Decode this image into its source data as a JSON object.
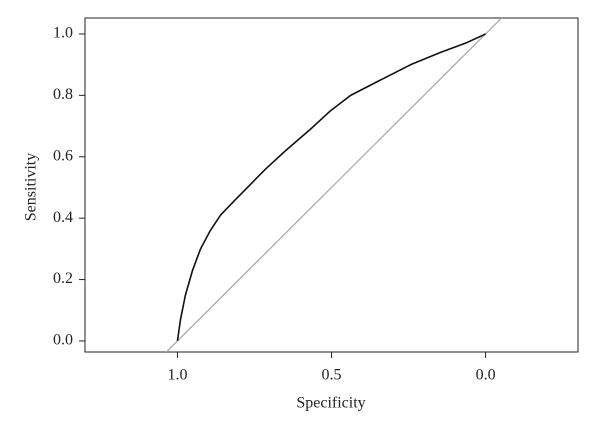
{
  "chart_data": {
    "type": "line",
    "x_label": "Specificity",
    "y_label": "Sensitivity",
    "x": [
      1.0,
      0.99,
      0.974,
      0.951,
      0.925,
      0.893,
      0.86,
      0.812,
      0.763,
      0.714,
      0.649,
      0.568,
      0.503,
      0.438,
      0.341,
      0.243,
      0.146,
      0.065,
      0.0
    ],
    "series": [
      {
        "color": "#111111",
        "values": [
          0.0,
          0.07,
          0.15,
          0.23,
          0.3,
          0.36,
          0.41,
          0.46,
          0.51,
          0.56,
          0.62,
          0.69,
          0.75,
          0.8,
          0.85,
          0.9,
          0.94,
          0.97,
          1.0
        ]
      }
    ],
    "diagonal": true,
    "diagonal_color": "#aaaaaa",
    "xlim": [
      1.3,
      -0.3
    ],
    "ylim": [
      -0.036,
      1.052
    ],
    "xticks": [
      {
        "value": 1.0,
        "label": "1.0"
      },
      {
        "value": 0.5,
        "label": "0.5"
      },
      {
        "value": 0.0,
        "label": "0.0"
      }
    ],
    "yticks": [
      {
        "value": 0.0,
        "label": "0.0"
      },
      {
        "value": 0.2,
        "label": "0.2"
      },
      {
        "value": 0.4,
        "label": "0.4"
      },
      {
        "value": 0.6,
        "label": "0.6"
      },
      {
        "value": 0.8,
        "label": "0.8"
      },
      {
        "value": 1.0,
        "label": "1.0"
      }
    ]
  }
}
